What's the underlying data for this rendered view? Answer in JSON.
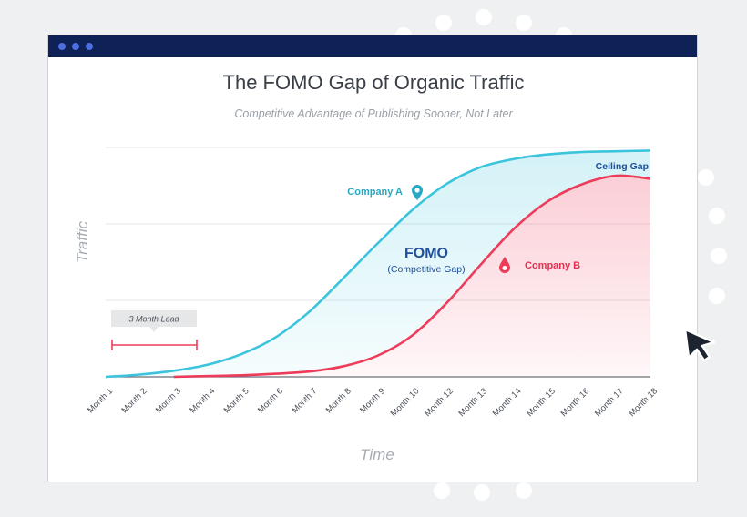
{
  "colors": {
    "company_a": "#3cc4dc",
    "company_b": "#ee3b5a",
    "fomo": "#1d4f9a",
    "titlebar": "#0f2258"
  },
  "icons": [
    "location-pin-icon",
    "drop-pin-icon",
    "cursor-arrow-icon"
  ],
  "chart_data": {
    "type": "area",
    "title": "The FOMO Gap of Organic Traffic",
    "subtitle": "Competitive Advantage of Publishing Sooner, Not Later",
    "xlabel": "Time",
    "ylabel": "Traffic",
    "categories": [
      "Month 1",
      "Month 2",
      "Month 3",
      "Month 4",
      "Month 5",
      "Month 6",
      "Month 7",
      "Month 8",
      "Month 9",
      "Month 10",
      "Month 12",
      "Month 13",
      "Month 14",
      "Month 15",
      "Month 16",
      "Month 17",
      "Month 18"
    ],
    "ylim": [
      0,
      3
    ],
    "grid": true,
    "series": [
      {
        "name": "Company A",
        "values": [
          0.0,
          0.03,
          0.08,
          0.16,
          0.3,
          0.52,
          0.86,
          1.3,
          1.75,
          2.18,
          2.52,
          2.74,
          2.85,
          2.91,
          2.94,
          2.95,
          2.96
        ]
      },
      {
        "name": "Company B",
        "values": [
          null,
          null,
          0.0,
          0.01,
          0.02,
          0.04,
          0.07,
          0.14,
          0.28,
          0.54,
          0.96,
          1.46,
          1.94,
          2.3,
          2.52,
          2.63,
          2.59
        ]
      }
    ],
    "annotations": {
      "ceiling_gap": "Ceiling Gap",
      "fomo_title": "FOMO",
      "fomo_sub": "(Competitive Gap)",
      "lead": "3 Month Lead"
    }
  }
}
